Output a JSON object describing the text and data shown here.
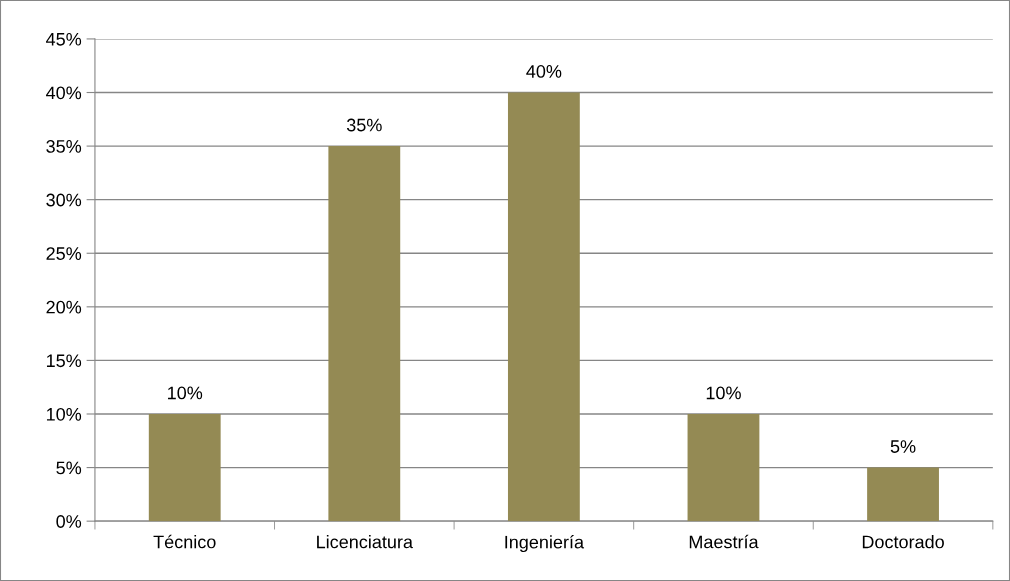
{
  "chart_data": {
    "type": "bar",
    "categories": [
      "Técnico",
      "Licenciatura",
      "Ingeniería",
      "Maestría",
      "Doctorado"
    ],
    "values": [
      10,
      35,
      40,
      10,
      5
    ],
    "value_labels": [
      "10%",
      "35%",
      "40%",
      "10%",
      "5%"
    ],
    "color": "#948a54",
    "ylim": [
      0,
      45
    ],
    "yticks": [
      {
        "value": 0,
        "label": "0%"
      },
      {
        "value": 5,
        "label": "5%"
      },
      {
        "value": 10,
        "label": "10%"
      },
      {
        "value": 15,
        "label": "15%"
      },
      {
        "value": 20,
        "label": "20%"
      },
      {
        "value": 25,
        "label": "25%"
      },
      {
        "value": 30,
        "label": "30%"
      },
      {
        "value": 35,
        "label": "35%"
      },
      {
        "value": 40,
        "label": "40%"
      },
      {
        "value": 45,
        "label": "45%"
      }
    ],
    "grid": "y",
    "legend": false
  }
}
